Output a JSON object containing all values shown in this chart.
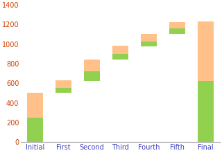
{
  "categories": [
    "Initial",
    "First",
    "Second",
    "Third",
    "Fourth",
    "Fifth",
    "Final"
  ],
  "base": [
    0,
    500,
    625,
    840,
    975,
    1100,
    0
  ],
  "green_height": [
    250,
    55,
    100,
    55,
    50,
    60,
    620
  ],
  "orange_height": [
    250,
    75,
    120,
    90,
    80,
    65,
    610
  ],
  "green_color": "#92d050",
  "orange_color": "#ffc08a",
  "ylim": [
    0,
    1400
  ],
  "yticks": [
    0,
    200,
    400,
    600,
    800,
    1000,
    1200,
    1400
  ],
  "figsize": [
    3.2,
    2.21
  ],
  "dpi": 100,
  "bar_width": 0.55,
  "bg_color": "#ffffff",
  "spine_color": "#a0a0a0",
  "tick_label_fontsize": 7.0,
  "tick_label_color_x": "#4040c0",
  "tick_label_color_y": "#d04000"
}
